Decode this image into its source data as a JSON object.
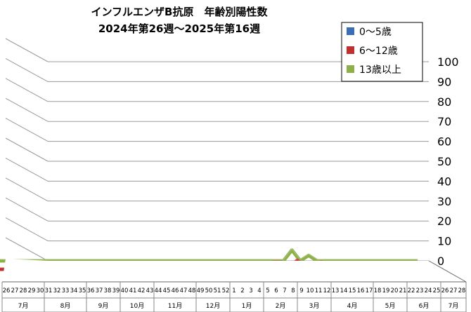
{
  "chart_data": {
    "type": "line",
    "style": "3d-ribbon",
    "title": [
      "インフルエンザB抗原　年齢別陽性数",
      "2024年第26週～2025年第16週"
    ],
    "x": [
      "26",
      "27",
      "28",
      "29",
      "30",
      "31",
      "32",
      "33",
      "34",
      "35",
      "36",
      "37",
      "38",
      "39",
      "40",
      "41",
      "42",
      "43",
      "44",
      "45",
      "46",
      "47",
      "48",
      "49",
      "50",
      "51",
      "52",
      "1",
      "2",
      "3",
      "4",
      "5",
      "6",
      "7",
      "8",
      "9",
      "10",
      "11",
      "12",
      "13",
      "14",
      "15",
      "16",
      "17",
      "18",
      "19",
      "20",
      "21",
      "22",
      "23",
      "24",
      "25",
      "26",
      "27",
      "28"
    ],
    "months": [
      {
        "label": "7月",
        "start": 0,
        "end": 5
      },
      {
        "label": "8月",
        "start": 5,
        "end": 10
      },
      {
        "label": "9月",
        "start": 10,
        "end": 14
      },
      {
        "label": "10月",
        "start": 14,
        "end": 18
      },
      {
        "label": "11月",
        "start": 18,
        "end": 23
      },
      {
        "label": "12月",
        "start": 23,
        "end": 27
      },
      {
        "label": "1月",
        "start": 27,
        "end": 31
      },
      {
        "label": "2月",
        "start": 31,
        "end": 35
      },
      {
        "label": "3月",
        "start": 35,
        "end": 39
      },
      {
        "label": "4月",
        "start": 39,
        "end": 44
      },
      {
        "label": "5月",
        "start": 44,
        "end": 48
      },
      {
        "label": "6月",
        "start": 48,
        "end": 52
      },
      {
        "label": "7月",
        "start": 52,
        "end": 55
      }
    ],
    "series": [
      {
        "name": "0～5歳",
        "color": "#3a6fb8",
        "values": [
          0,
          0,
          0,
          0,
          0,
          0,
          0,
          0,
          0,
          0,
          0,
          0,
          0,
          0,
          0,
          0,
          0,
          0,
          0,
          0,
          0,
          0,
          0,
          0,
          0,
          0,
          0,
          1,
          0,
          1,
          0,
          0,
          0,
          0,
          1,
          0,
          1,
          2,
          0,
          1,
          2,
          0,
          null,
          null,
          null,
          null,
          null,
          null,
          null,
          null,
          null,
          null,
          null,
          null,
          null
        ]
      },
      {
        "name": "6～12歳",
        "color": "#c0312e",
        "values": [
          0,
          0,
          0,
          0,
          0,
          0,
          0,
          0,
          0,
          0,
          0,
          0,
          0,
          0,
          0,
          0,
          0,
          0,
          0,
          0,
          1,
          1,
          0,
          0,
          1,
          0,
          0,
          0,
          0,
          0,
          0,
          0,
          0,
          1,
          2,
          4,
          4,
          1,
          5,
          1,
          2,
          4,
          1,
          0,
          0,
          0,
          0,
          0,
          0,
          0,
          0,
          0,
          0,
          0,
          null
        ]
      },
      {
        "name": "13歳以上",
        "color": "#8db04a",
        "values": [
          0,
          0,
          0,
          0,
          0,
          0,
          0,
          0,
          0,
          0,
          0,
          0,
          0,
          0,
          0,
          0,
          0,
          0,
          0,
          0,
          0,
          0,
          0,
          0,
          0,
          0,
          0,
          0,
          0,
          0,
          0,
          0,
          0,
          0,
          0,
          0,
          0,
          0,
          6,
          0,
          3,
          0,
          0,
          0,
          0,
          0,
          0,
          0,
          0,
          0,
          0,
          0,
          0,
          0,
          null
        ]
      }
    ],
    "ylim": [
      0,
      100
    ],
    "yticks": [
      0,
      10,
      20,
      30,
      40,
      50,
      60,
      70,
      80,
      90,
      100
    ],
    "legend": "top-right",
    "grid": true
  }
}
